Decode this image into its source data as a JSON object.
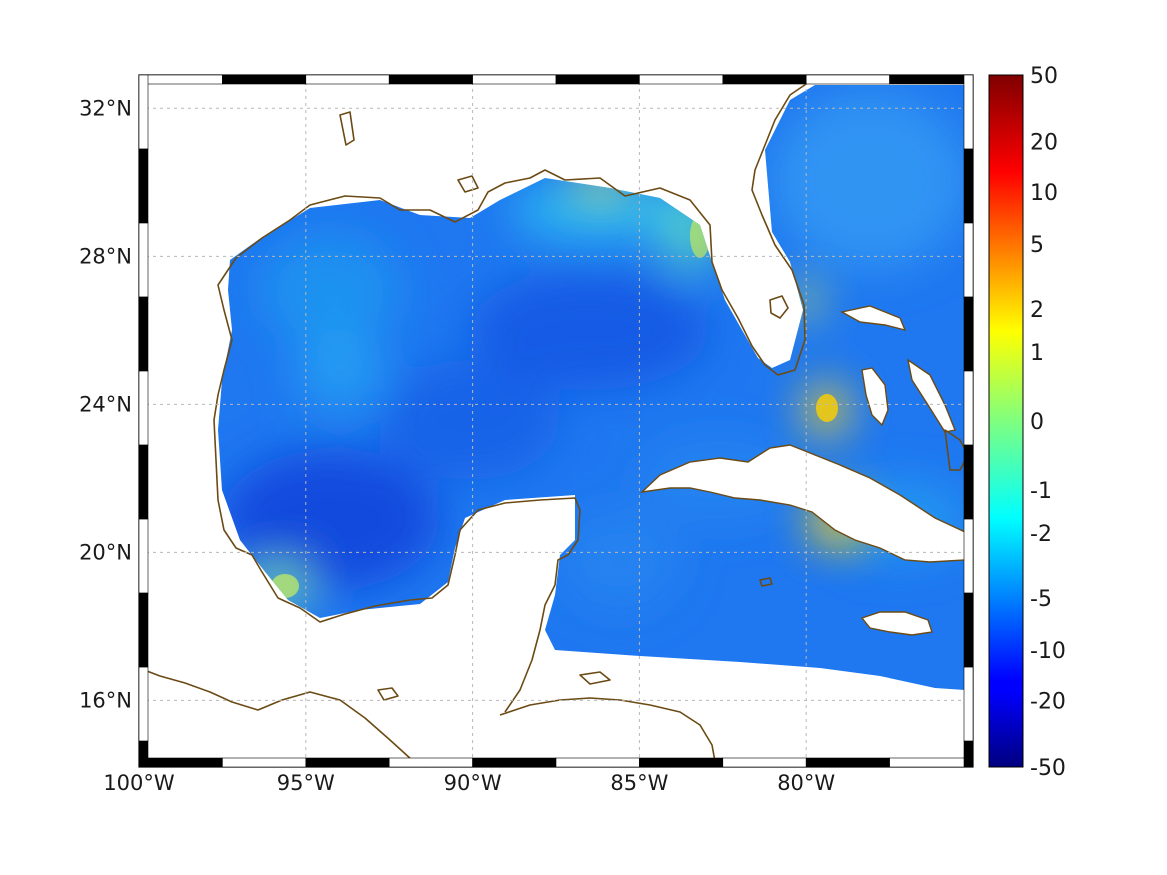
{
  "map": {
    "lon_range": [
      -100,
      -75
    ],
    "lat_range": [
      14.2,
      32.9
    ],
    "grid": true,
    "coastline_color": "#6b4a14",
    "x_ticks": [
      {
        "lon": -100,
        "label": "100°W"
      },
      {
        "lon": -95,
        "label": "95°W"
      },
      {
        "lon": -90,
        "label": "90°W"
      },
      {
        "lon": -85,
        "label": "85°W"
      },
      {
        "lon": -80,
        "label": "80°W"
      }
    ],
    "y_ticks": [
      {
        "lat": 32,
        "label": "32°N"
      },
      {
        "lat": 28,
        "label": "28°N"
      },
      {
        "lat": 24,
        "label": "24°N"
      },
      {
        "lat": 20,
        "label": "20°N"
      },
      {
        "lat": 16,
        "label": "16°N"
      }
    ]
  },
  "colorbar": {
    "colormap": "jet",
    "labels": [
      "50",
      "20",
      "10",
      "5",
      "2",
      "1",
      "0",
      "-1",
      "-2",
      "-5",
      "-10",
      "-20",
      "-50"
    ],
    "top_color": "#7f0000",
    "bottom_color": "#00007f"
  }
}
